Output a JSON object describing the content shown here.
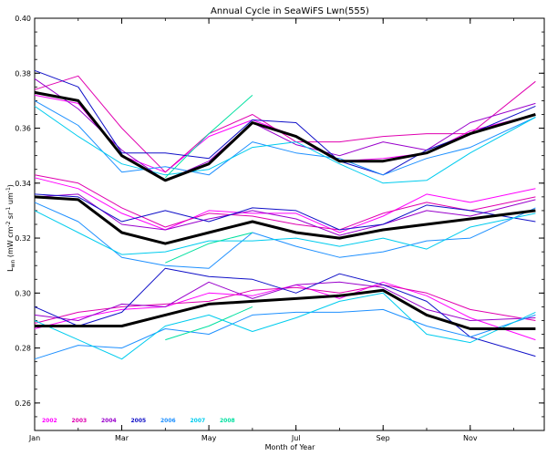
{
  "chart_data": {
    "type": "line",
    "title": "Annual Cycle in SeaWiFS Lwn(555)",
    "xlabel": "Month of Year",
    "ylabel": "Lwn (mW cm-2 sr-1 um-1)",
    "xlim": [
      1,
      12.7
    ],
    "ylim": [
      0.25,
      0.4
    ],
    "x_ticks": [
      {
        "value": 1,
        "label": "Jan"
      },
      {
        "value": 3,
        "label": "Mar"
      },
      {
        "value": 5,
        "label": "May"
      },
      {
        "value": 7,
        "label": "Jul"
      },
      {
        "value": 9,
        "label": "Sep"
      },
      {
        "value": 11,
        "label": "Nov"
      }
    ],
    "y_ticks": [
      0.26,
      0.28,
      0.3,
      0.32,
      0.34,
      0.36,
      0.38,
      0.4
    ],
    "y_tick_labels": [
      "0.26",
      "0.28",
      "0.30",
      "0.32",
      "0.34",
      "0.36",
      "0.38",
      "0.40"
    ],
    "legend_placement": "bottom-left, inside plot",
    "series": [
      {
        "name": "2002",
        "color": "#ff00ff",
        "group": "high",
        "x": [
          1,
          2,
          3,
          4,
          5,
          6,
          7,
          8,
          9,
          10,
          11,
          12.5
        ],
        "values": [
          0.372,
          0.369,
          0.35,
          0.344,
          0.357,
          0.363,
          0.357,
          0.348,
          0.349,
          0.351,
          0.359,
          0.365
        ]
      },
      {
        "name": "2003",
        "color": "#e000b0",
        "group": "high",
        "x": [
          1,
          2,
          3,
          4,
          5,
          6,
          7,
          8,
          9,
          10,
          11,
          12.5
        ],
        "values": [
          0.374,
          0.379,
          0.36,
          0.344,
          0.358,
          0.365,
          0.355,
          0.355,
          0.357,
          0.358,
          0.358,
          0.377
        ]
      },
      {
        "name": "2004",
        "color": "#9900cc",
        "group": "high",
        "x": [
          1,
          2,
          3,
          4,
          5,
          6,
          7,
          8,
          9,
          10,
          11,
          12.5
        ],
        "values": [
          0.378,
          0.367,
          0.352,
          0.341,
          0.348,
          0.362,
          0.354,
          0.35,
          0.355,
          0.352,
          0.362,
          0.369
        ]
      },
      {
        "name": "2005",
        "color": "#1010c8",
        "group": "high",
        "x": [
          1,
          2,
          3,
          4,
          5,
          6,
          7,
          8,
          9,
          10,
          11,
          12.5
        ],
        "values": [
          0.381,
          0.375,
          0.351,
          0.351,
          0.349,
          0.363,
          0.362,
          0.348,
          0.343,
          0.352,
          0.358,
          0.368
        ]
      },
      {
        "name": "2006",
        "color": "#1e90ff",
        "group": "high",
        "x": [
          1,
          2,
          3,
          4,
          5,
          6,
          7,
          8,
          9,
          10,
          11,
          12.5
        ],
        "values": [
          0.37,
          0.361,
          0.344,
          0.346,
          0.343,
          0.355,
          0.351,
          0.349,
          0.343,
          0.349,
          0.353,
          0.364
        ]
      },
      {
        "name": "2007",
        "color": "#00ccee",
        "group": "high",
        "x": [
          1,
          2,
          3,
          4,
          5,
          6,
          7,
          8,
          9,
          10,
          11,
          12.5
        ],
        "values": [
          0.368,
          0.357,
          0.347,
          0.343,
          0.345,
          0.353,
          0.355,
          0.347,
          0.34,
          0.341,
          0.351,
          0.364
        ]
      },
      {
        "name": "2008",
        "color": "#00e0a0",
        "group": "high",
        "x": [
          4,
          5,
          6
        ],
        "values": [
          0.342,
          0.358,
          0.372
        ]
      },
      {
        "name": "mean",
        "color": "#000000",
        "group": "high",
        "x": [
          1,
          2,
          3,
          4,
          5,
          6,
          7,
          8,
          9,
          10,
          11,
          12.5
        ],
        "values": [
          0.373,
          0.37,
          0.35,
          0.341,
          0.347,
          0.362,
          0.357,
          0.348,
          0.348,
          0.351,
          0.358,
          0.365
        ]
      },
      {
        "name": "2002",
        "color": "#ff00ff",
        "group": "mid",
        "x": [
          1,
          2,
          3,
          4,
          5,
          6,
          7,
          8,
          9,
          10,
          11,
          12.5
        ],
        "values": [
          0.342,
          0.338,
          0.329,
          0.323,
          0.33,
          0.329,
          0.329,
          0.322,
          0.328,
          0.336,
          0.333,
          0.338
        ]
      },
      {
        "name": "2003",
        "color": "#e000b0",
        "group": "mid",
        "x": [
          1,
          2,
          3,
          4,
          5,
          6,
          7,
          8,
          9,
          10,
          11,
          12.5
        ],
        "values": [
          0.343,
          0.34,
          0.331,
          0.324,
          0.329,
          0.328,
          0.325,
          0.323,
          0.329,
          0.333,
          0.33,
          0.335
        ]
      },
      {
        "name": "2004",
        "color": "#9900cc",
        "group": "mid",
        "x": [
          1,
          2,
          3,
          4,
          5,
          6,
          7,
          8,
          9,
          10,
          11,
          12.5
        ],
        "values": [
          0.335,
          0.336,
          0.325,
          0.323,
          0.327,
          0.33,
          0.327,
          0.321,
          0.325,
          0.33,
          0.328,
          0.334
        ]
      },
      {
        "name": "2005",
        "color": "#1010c8",
        "group": "mid",
        "x": [
          1,
          2,
          3,
          4,
          5,
          6,
          7,
          8,
          9,
          10,
          11,
          12.5
        ],
        "values": [
          0.336,
          0.335,
          0.326,
          0.33,
          0.326,
          0.331,
          0.33,
          0.323,
          0.325,
          0.332,
          0.33,
          0.326
        ]
      },
      {
        "name": "2006",
        "color": "#1e90ff",
        "group": "mid",
        "x": [
          1,
          2,
          3,
          4,
          5,
          6,
          7,
          8,
          9,
          10,
          11,
          12.5
        ],
        "values": [
          0.333,
          0.326,
          0.313,
          0.31,
          0.309,
          0.322,
          0.317,
          0.313,
          0.315,
          0.319,
          0.32,
          0.331
        ]
      },
      {
        "name": "2007",
        "color": "#00ccee",
        "group": "mid",
        "x": [
          1,
          2,
          3,
          4,
          5,
          6,
          7,
          8,
          9,
          10,
          11,
          12.5
        ],
        "values": [
          0.33,
          0.322,
          0.314,
          0.315,
          0.319,
          0.319,
          0.32,
          0.317,
          0.32,
          0.316,
          0.324,
          0.329
        ]
      },
      {
        "name": "2008",
        "color": "#00e0a0",
        "group": "mid",
        "x": [
          4,
          5,
          6
        ],
        "values": [
          0.311,
          0.318,
          0.322
        ]
      },
      {
        "name": "mean",
        "color": "#000000",
        "group": "mid",
        "x": [
          1,
          2,
          3,
          4,
          5,
          6,
          7,
          8,
          9,
          10,
          11,
          12.5
        ],
        "values": [
          0.335,
          0.334,
          0.322,
          0.318,
          0.322,
          0.326,
          0.322,
          0.32,
          0.323,
          0.325,
          0.327,
          0.33
        ]
      },
      {
        "name": "2002",
        "color": "#ff00ff",
        "group": "low",
        "x": [
          1,
          2,
          3,
          4,
          5,
          6,
          7,
          8,
          9,
          10,
          11,
          12.5
        ],
        "values": [
          0.287,
          0.291,
          0.294,
          0.295,
          0.3,
          0.299,
          0.303,
          0.298,
          0.304,
          0.299,
          0.291,
          0.283
        ]
      },
      {
        "name": "2003",
        "color": "#e000b0",
        "group": "low",
        "x": [
          1,
          2,
          3,
          4,
          5,
          6,
          7,
          8,
          9,
          10,
          11,
          12.5
        ],
        "values": [
          0.289,
          0.293,
          0.295,
          0.296,
          0.297,
          0.301,
          0.302,
          0.3,
          0.303,
          0.3,
          0.294,
          0.29
        ]
      },
      {
        "name": "2004",
        "color": "#9900cc",
        "group": "low",
        "x": [
          1,
          2,
          3,
          4,
          5,
          6,
          7,
          8,
          9,
          10,
          11,
          12.5
        ],
        "values": [
          0.292,
          0.29,
          0.296,
          0.295,
          0.304,
          0.298,
          0.303,
          0.304,
          0.302,
          0.294,
          0.29,
          0.291
        ]
      },
      {
        "name": "2005",
        "color": "#1010c8",
        "group": "low",
        "x": [
          1,
          2,
          3,
          4,
          5,
          6,
          7,
          8,
          9,
          10,
          11,
          12.5
        ],
        "values": [
          0.295,
          0.288,
          0.293,
          0.309,
          0.306,
          0.305,
          0.3,
          0.307,
          0.303,
          0.297,
          0.284,
          0.277
        ]
      },
      {
        "name": "2006",
        "color": "#1e90ff",
        "group": "low",
        "x": [
          1,
          2,
          3,
          4,
          5,
          6,
          7,
          8,
          9,
          10,
          11,
          12.5
        ],
        "values": [
          0.276,
          0.281,
          0.28,
          0.287,
          0.285,
          0.292,
          0.293,
          0.293,
          0.294,
          0.288,
          0.284,
          0.292
        ]
      },
      {
        "name": "2007",
        "color": "#00ccee",
        "group": "low",
        "x": [
          1,
          2,
          3,
          4,
          5,
          6,
          7,
          8,
          9,
          10,
          11,
          12.5
        ],
        "values": [
          0.29,
          0.283,
          0.276,
          0.288,
          0.292,
          0.286,
          0.291,
          0.297,
          0.3,
          0.285,
          0.282,
          0.293
        ]
      },
      {
        "name": "2008",
        "color": "#00e0a0",
        "group": "low",
        "x": [
          4,
          5,
          6
        ],
        "values": [
          0.283,
          0.288,
          0.295
        ]
      },
      {
        "name": "mean",
        "color": "#000000",
        "group": "low",
        "x": [
          1,
          2,
          3,
          4,
          5,
          6,
          7,
          8,
          9,
          10,
          11,
          12.5
        ],
        "values": [
          0.288,
          0.288,
          0.288,
          0.292,
          0.296,
          0.297,
          0.298,
          0.299,
          0.301,
          0.292,
          0.287,
          0.287
        ]
      }
    ],
    "legend": [
      {
        "label": "2002",
        "color": "#ff00ff"
      },
      {
        "label": "2003",
        "color": "#e000b0"
      },
      {
        "label": "2004",
        "color": "#9900cc"
      },
      {
        "label": "2005",
        "color": "#1010c8"
      },
      {
        "label": "2006",
        "color": "#1e90ff"
      },
      {
        "label": "2007",
        "color": "#00ccee"
      },
      {
        "label": "2008",
        "color": "#00e0a0"
      }
    ]
  }
}
